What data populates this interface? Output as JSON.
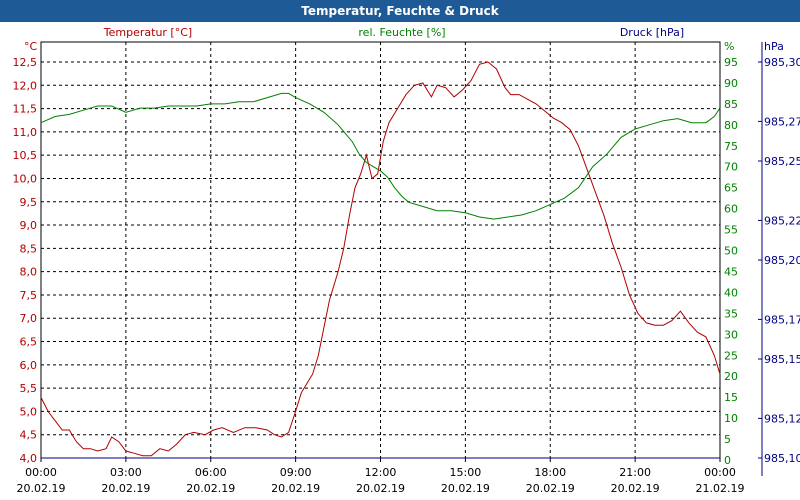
{
  "window": {
    "title": "Temperatur, Feuchte & Druck"
  },
  "colors": {
    "temperature": "#b00000",
    "humidity": "#008000",
    "pressure": "#000080",
    "title_bar": "#1e5a96",
    "grid": "#000000"
  },
  "chart_data": {
    "type": "line",
    "title": "Temperatur, Feuchte & Druck",
    "grid": true,
    "legend": "top",
    "x_axis": {
      "range_hours": [
        0,
        24
      ],
      "ticks": [
        {
          "time": "00:00",
          "date": "20.02.19"
        },
        {
          "time": "03:00",
          "date": "20.02.19"
        },
        {
          "time": "06:00",
          "date": "20.02.19"
        },
        {
          "time": "09:00",
          "date": "20.02.19"
        },
        {
          "time": "12:00",
          "date": "20.02.19"
        },
        {
          "time": "15:00",
          "date": "20.02.19"
        },
        {
          "time": "18:00",
          "date": "20.02.19"
        },
        {
          "time": "21:00",
          "date": "20.02.19"
        },
        {
          "time": "00:00",
          "date": "21.02.19"
        }
      ]
    },
    "y_axes": {
      "temperature": {
        "label": "Temperatur [°C]",
        "unit": "°C",
        "range": [
          4.0,
          12.5
        ],
        "ticks": [
          "4,0",
          "4,5",
          "5,0",
          "5,5",
          "6,0",
          "6,5",
          "7,0",
          "7,5",
          "8,0",
          "8,5",
          "9,0",
          "9,5",
          "10,0",
          "10,5",
          "11,0",
          "11,5",
          "12,0",
          "12,5"
        ]
      },
      "humidity": {
        "label": "rel. Feuchte [%]",
        "unit": "%",
        "range": [
          0,
          95
        ],
        "ticks": [
          "0",
          "5",
          "10",
          "15",
          "20",
          "25",
          "30",
          "35",
          "40",
          "45",
          "50",
          "55",
          "60",
          "65",
          "70",
          "75",
          "80",
          "85",
          "90",
          "95"
        ]
      },
      "pressure": {
        "label": "Druck [hPa]",
        "unit": "hPa",
        "range": [
          985.1,
          985.3
        ],
        "ticks": [
          {
            "label": "985,10",
            "value": 985.1
          },
          {
            "label": "985,12",
            "value": 985.12
          },
          {
            "label": "985,15",
            "value": 985.15
          },
          {
            "label": "985,17",
            "value": 985.17
          },
          {
            "label": "985,20",
            "value": 985.2
          },
          {
            "label": "985,22",
            "value": 985.22
          },
          {
            "label": "985,25",
            "value": 985.25
          },
          {
            "label": "985,27",
            "value": 985.27
          },
          {
            "label": "985,30",
            "value": 985.3
          }
        ]
      }
    },
    "series": [
      {
        "key": "temperature",
        "name": "Temperatur [°C]",
        "axis": "temperature",
        "points": [
          [
            0.0,
            5.3
          ],
          [
            0.25,
            5.0
          ],
          [
            0.5,
            4.8
          ],
          [
            0.75,
            4.6
          ],
          [
            1.0,
            4.6
          ],
          [
            1.25,
            4.35
          ],
          [
            1.5,
            4.2
          ],
          [
            1.75,
            4.2
          ],
          [
            2.0,
            4.15
          ],
          [
            2.3,
            4.2
          ],
          [
            2.5,
            4.45
          ],
          [
            2.75,
            4.35
          ],
          [
            3.0,
            4.15
          ],
          [
            3.3,
            4.1
          ],
          [
            3.6,
            4.05
          ],
          [
            3.9,
            4.05
          ],
          [
            4.2,
            4.2
          ],
          [
            4.5,
            4.15
          ],
          [
            4.8,
            4.3
          ],
          [
            5.1,
            4.5
          ],
          [
            5.4,
            4.55
          ],
          [
            5.8,
            4.5
          ],
          [
            6.1,
            4.6
          ],
          [
            6.4,
            4.65
          ],
          [
            6.8,
            4.55
          ],
          [
            7.2,
            4.65
          ],
          [
            7.6,
            4.65
          ],
          [
            8.0,
            4.6
          ],
          [
            8.25,
            4.5
          ],
          [
            8.5,
            4.45
          ],
          [
            8.75,
            4.55
          ],
          [
            9.0,
            5.0
          ],
          [
            9.2,
            5.4
          ],
          [
            9.4,
            5.6
          ],
          [
            9.6,
            5.8
          ],
          [
            9.8,
            6.2
          ],
          [
            10.0,
            6.8
          ],
          [
            10.2,
            7.4
          ],
          [
            10.5,
            8.0
          ],
          [
            10.7,
            8.5
          ],
          [
            10.9,
            9.2
          ],
          [
            11.1,
            9.8
          ],
          [
            11.3,
            10.1
          ],
          [
            11.5,
            10.5
          ],
          [
            11.7,
            10.0
          ],
          [
            11.9,
            10.1
          ],
          [
            12.1,
            10.8
          ],
          [
            12.3,
            11.2
          ],
          [
            12.6,
            11.5
          ],
          [
            12.9,
            11.8
          ],
          [
            13.2,
            12.0
          ],
          [
            13.5,
            12.05
          ],
          [
            13.8,
            11.75
          ],
          [
            14.0,
            12.0
          ],
          [
            14.3,
            11.95
          ],
          [
            14.6,
            11.75
          ],
          [
            14.9,
            11.9
          ],
          [
            15.2,
            12.1
          ],
          [
            15.5,
            12.45
          ],
          [
            15.8,
            12.5
          ],
          [
            16.1,
            12.35
          ],
          [
            16.4,
            11.95
          ],
          [
            16.6,
            11.8
          ],
          [
            16.9,
            11.8
          ],
          [
            17.2,
            11.7
          ],
          [
            17.5,
            11.6
          ],
          [
            17.8,
            11.45
          ],
          [
            18.1,
            11.3
          ],
          [
            18.4,
            11.2
          ],
          [
            18.7,
            11.05
          ],
          [
            19.0,
            10.7
          ],
          [
            19.3,
            10.2
          ],
          [
            19.6,
            9.7
          ],
          [
            19.9,
            9.2
          ],
          [
            20.2,
            8.6
          ],
          [
            20.5,
            8.1
          ],
          [
            20.8,
            7.5
          ],
          [
            21.1,
            7.1
          ],
          [
            21.4,
            6.9
          ],
          [
            21.7,
            6.85
          ],
          [
            22.0,
            6.85
          ],
          [
            22.3,
            6.95
          ],
          [
            22.6,
            7.15
          ],
          [
            22.9,
            6.9
          ],
          [
            23.2,
            6.7
          ],
          [
            23.5,
            6.6
          ],
          [
            23.8,
            6.2
          ],
          [
            24.0,
            5.8
          ]
        ]
      },
      {
        "key": "humidity",
        "name": "rel. Feuchte [%]",
        "axis": "humidity",
        "points": [
          [
            0.0,
            80.5
          ],
          [
            0.5,
            82
          ],
          [
            1.0,
            82.5
          ],
          [
            1.5,
            83.5
          ],
          [
            2.0,
            84.5
          ],
          [
            2.5,
            84.5
          ],
          [
            3.0,
            83
          ],
          [
            3.5,
            84
          ],
          [
            4.0,
            84
          ],
          [
            4.5,
            84.5
          ],
          [
            5.0,
            84.5
          ],
          [
            5.5,
            84.5
          ],
          [
            6.0,
            85
          ],
          [
            6.5,
            85
          ],
          [
            7.0,
            85.5
          ],
          [
            7.5,
            85.5
          ],
          [
            8.0,
            86.5
          ],
          [
            8.5,
            87.5
          ],
          [
            8.75,
            87.5
          ],
          [
            9.0,
            86.5
          ],
          [
            9.5,
            85
          ],
          [
            10.0,
            83
          ],
          [
            10.5,
            80
          ],
          [
            11.0,
            76
          ],
          [
            11.25,
            73
          ],
          [
            11.5,
            71
          ],
          [
            11.75,
            70
          ],
          [
            12.0,
            69
          ],
          [
            12.25,
            67.5
          ],
          [
            12.5,
            65
          ],
          [
            12.75,
            63
          ],
          [
            13.0,
            61.5
          ],
          [
            13.5,
            60.5
          ],
          [
            14.0,
            59.5
          ],
          [
            14.5,
            59.5
          ],
          [
            15.0,
            59
          ],
          [
            15.5,
            58
          ],
          [
            16.0,
            57.5
          ],
          [
            16.5,
            58
          ],
          [
            17.0,
            58.5
          ],
          [
            17.5,
            59.5
          ],
          [
            18.0,
            61
          ],
          [
            18.5,
            62.5
          ],
          [
            19.0,
            65
          ],
          [
            19.5,
            70
          ],
          [
            20.0,
            73
          ],
          [
            20.5,
            77
          ],
          [
            21.0,
            79
          ],
          [
            21.5,
            80
          ],
          [
            22.0,
            81
          ],
          [
            22.5,
            81.5
          ],
          [
            23.0,
            80.5
          ],
          [
            23.5,
            80.5
          ],
          [
            23.8,
            82
          ],
          [
            24.0,
            84
          ]
        ]
      },
      {
        "key": "pressure",
        "name": "Druck [hPa]",
        "axis": "pressure",
        "points": [
          [
            0.0,
            985.1
          ],
          [
            24.0,
            985.1
          ]
        ]
      }
    ]
  }
}
